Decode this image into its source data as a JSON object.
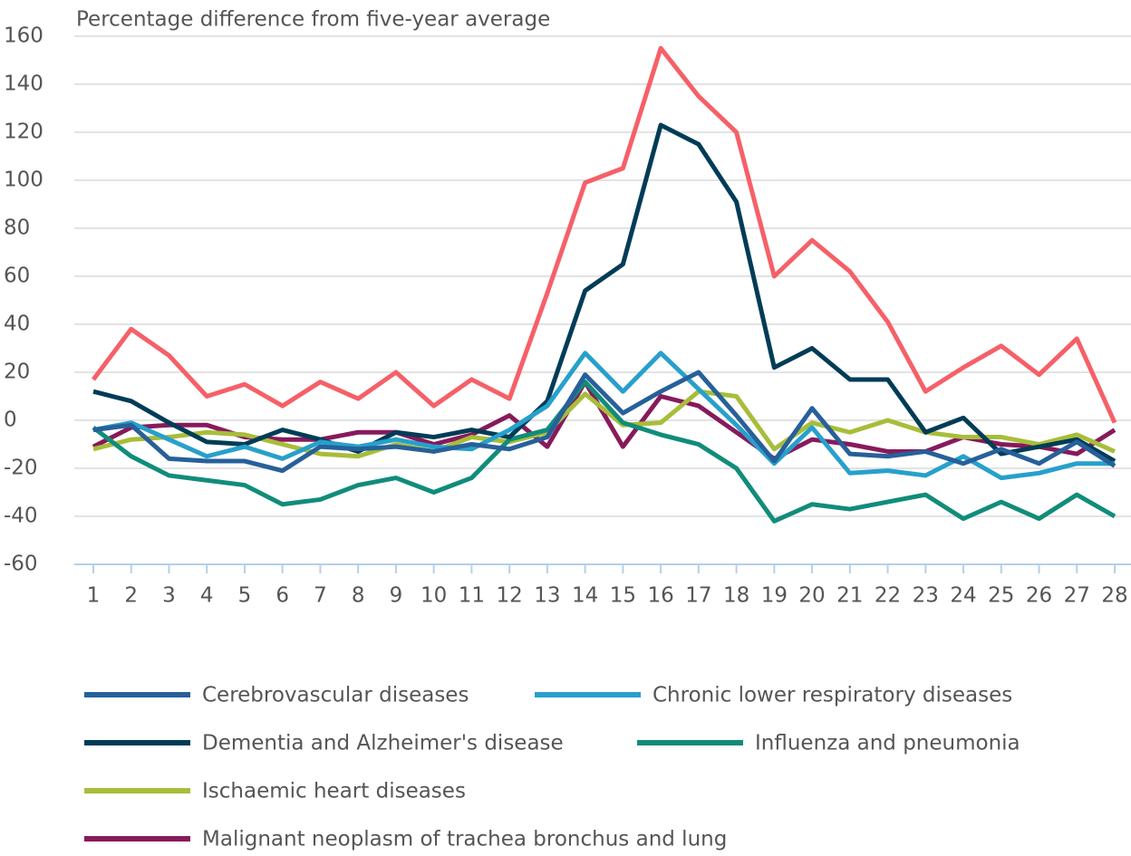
{
  "chart_data": {
    "type": "line",
    "title": "Percentage difference from five-year average",
    "categories": [
      1,
      2,
      3,
      4,
      5,
      6,
      7,
      8,
      9,
      10,
      11,
      12,
      13,
      14,
      15,
      16,
      17,
      18,
      19,
      20,
      21,
      22,
      23,
      24,
      25,
      26,
      27,
      28
    ],
    "ylim": [
      -60,
      160
    ],
    "yticks": [
      -60,
      -40,
      -20,
      0,
      20,
      40,
      60,
      80,
      100,
      120,
      140,
      160
    ],
    "grid": true,
    "series": [
      {
        "name": "Cerebrovascular diseases",
        "color": "#27609a",
        "values": [
          -4,
          -2,
          -16,
          -17,
          -17,
          -21,
          -11,
          -12,
          -11,
          -13,
          -10,
          -12,
          -7,
          19,
          3,
          12,
          20,
          2,
          -17,
          5,
          -14,
          -15,
          -13,
          -18,
          -12,
          -18,
          -9,
          -19
        ]
      },
      {
        "name": "Chronic lower respiratory diseases",
        "color": "#27a0cc",
        "values": [
          -4,
          -1,
          -8,
          -15,
          -11,
          -16,
          -9,
          -11,
          -8,
          -11,
          -12,
          -4,
          6,
          28,
          12,
          28,
          13,
          -2,
          -18,
          -3,
          -22,
          -21,
          -23,
          -15,
          -24,
          -22,
          -18,
          -18
        ]
      },
      {
        "name": "Dementia and Alzheimer's disease",
        "color": "#003c57",
        "values": [
          12,
          8,
          -1,
          -9,
          -10,
          -4,
          -8,
          -13,
          -5,
          -7,
          -4,
          -7,
          8,
          54,
          65,
          123,
          115,
          91,
          22,
          30,
          17,
          17,
          -5,
          1,
          -14,
          -11,
          -8,
          -17
        ]
      },
      {
        "name": "Influenza and pneumonia",
        "color": "#118c7b",
        "values": [
          -3,
          -15,
          -23,
          -25,
          -27,
          -35,
          -33,
          -27,
          -24,
          -30,
          -24,
          -8,
          -4,
          16,
          -1,
          -6,
          -10,
          -20,
          -42,
          -35,
          -37,
          -34,
          -31,
          -41,
          -34,
          -41,
          -31,
          -40
        ]
      },
      {
        "name": "Ischaemic heart diseases",
        "color": "#a8bd3a",
        "values": [
          -12,
          -8,
          -7,
          -5,
          -6,
          -10,
          -14,
          -15,
          -10,
          -13,
          -7,
          -9,
          -5,
          11,
          -2,
          -1,
          12,
          10,
          -12,
          -1,
          -5,
          0,
          -5,
          -7,
          -7,
          -10,
          -6,
          -13
        ]
      },
      {
        "name": "Malignant neoplasm of trachea bronchus and lung",
        "color": "#871a5b",
        "values": [
          -11,
          -3,
          -2,
          -2,
          -7,
          -8,
          -8,
          -5,
          -5,
          -10,
          -6,
          2,
          -11,
          16,
          -11,
          10,
          6,
          -5,
          -16,
          -8,
          -10,
          -13,
          -13,
          -7,
          -10,
          -11,
          -14,
          -4
        ]
      },
      {
        "color": "#f66068",
        "values": [
          17,
          38,
          27,
          10,
          15,
          6,
          16,
          9,
          20,
          6,
          17,
          9,
          53,
          99,
          105,
          155,
          135,
          120,
          60,
          75,
          62,
          41,
          12,
          22,
          31,
          19,
          34,
          -1
        ]
      }
    ]
  }
}
